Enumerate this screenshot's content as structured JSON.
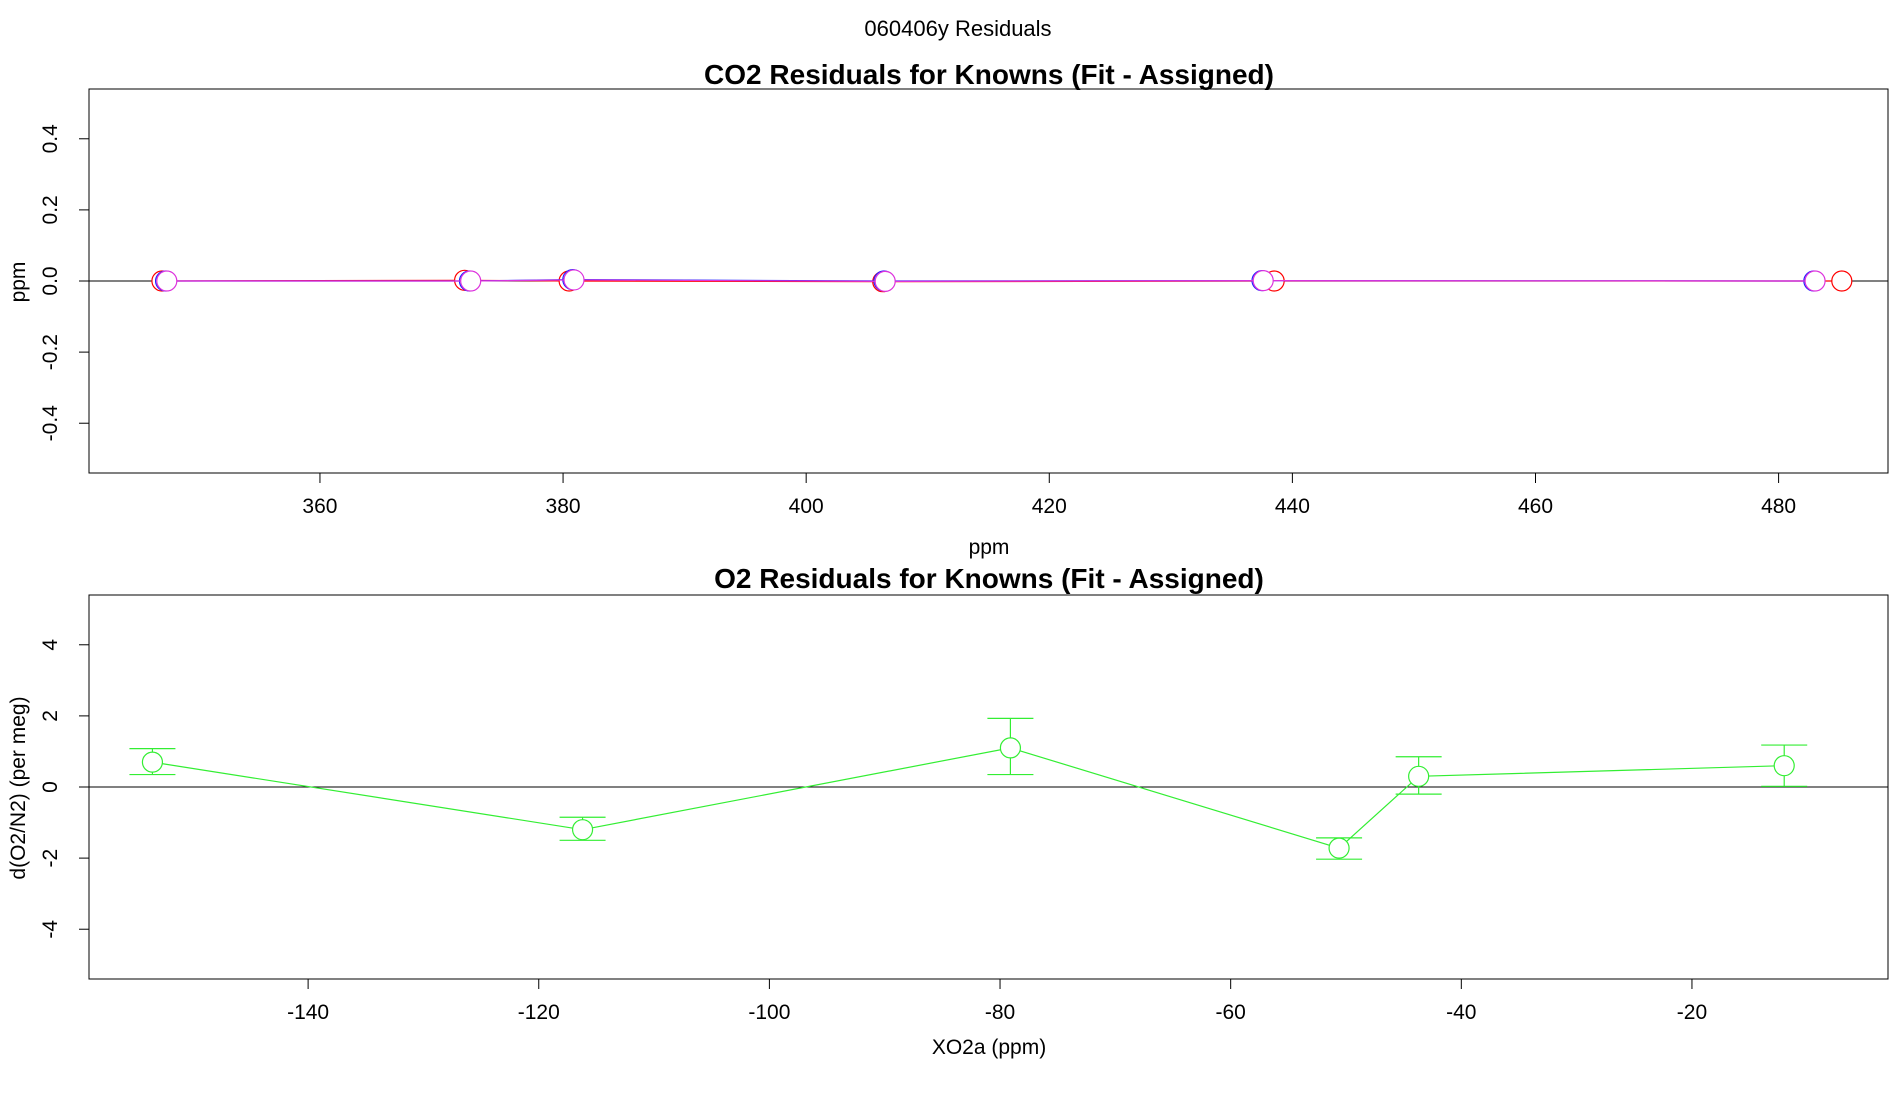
{
  "page": {
    "title": "060406y  Residuals"
  },
  "chart_data": [
    {
      "type": "line",
      "title": "CO2 Residuals for Knowns (Fit - Assigned)",
      "xlabel": "ppm",
      "ylabel": "ppm",
      "xlim": [
        341,
        489
      ],
      "ylim": [
        -0.54,
        0.54
      ],
      "xticks": [
        360,
        380,
        400,
        420,
        440,
        460,
        480
      ],
      "yticks": [
        -0.4,
        -0.2,
        0.0,
        0.2,
        0.4
      ],
      "xtick_labels": [
        "360",
        "380",
        "400",
        "420",
        "440",
        "460",
        "480"
      ],
      "ytick_labels": [
        "-0.4",
        "-0.2",
        "0.0",
        "0.2",
        "0.4"
      ],
      "reference_line": 0,
      "series": [
        {
          "color": "#ff0000",
          "x": [
            347.0,
            371.9,
            380.5,
            406.3,
            438.5,
            485.2
          ],
          "y": [
            0.0,
            0.002,
            0.0,
            -0.002,
            0.0,
            0.0
          ]
        },
        {
          "color": "#2222ff",
          "x": [
            347.3,
            372.3,
            380.8,
            406.4,
            437.5,
            482.9
          ],
          "y": [
            0.0,
            0.0,
            0.004,
            0.0,
            0.001,
            0.0
          ]
        },
        {
          "color": "#dd33dd",
          "x": [
            347.4,
            372.4,
            380.9,
            406.5,
            437.6,
            483.0
          ],
          "y": [
            0.0,
            0.0,
            0.003,
            -0.001,
            0.001,
            0.0
          ]
        }
      ]
    },
    {
      "type": "line",
      "title": "O2 Residuals for Knowns (Fit - Assigned)",
      "xlabel": "XO2a (ppm)",
      "ylabel": "d(O2/N2) (per meg)",
      "xlim": [
        -159,
        -3
      ],
      "ylim": [
        -5.4,
        5.4
      ],
      "xticks": [
        -140,
        -120,
        -100,
        -80,
        -60,
        -40,
        -20
      ],
      "yticks": [
        -4,
        -2,
        0,
        2,
        4
      ],
      "xtick_labels": [
        "-140",
        "-120",
        "-100",
        "-80",
        "-60",
        "-40",
        "-20"
      ],
      "ytick_labels": [
        "-4",
        "-2",
        "0",
        "2",
        "4"
      ],
      "reference_line": 0,
      "series": [
        {
          "color": "#33ee33",
          "x": [
            -153.5,
            -116.2,
            -79.1,
            -50.6,
            -43.7,
            -12.0
          ],
          "y": [
            0.7,
            -1.2,
            1.1,
            -1.72,
            0.3,
            0.6
          ],
          "err_low": [
            0.35,
            -1.5,
            0.35,
            -2.03,
            -0.2,
            0.02
          ],
          "err_high": [
            1.08,
            -0.85,
            1.93,
            -1.43,
            0.85,
            1.18
          ]
        }
      ]
    }
  ]
}
